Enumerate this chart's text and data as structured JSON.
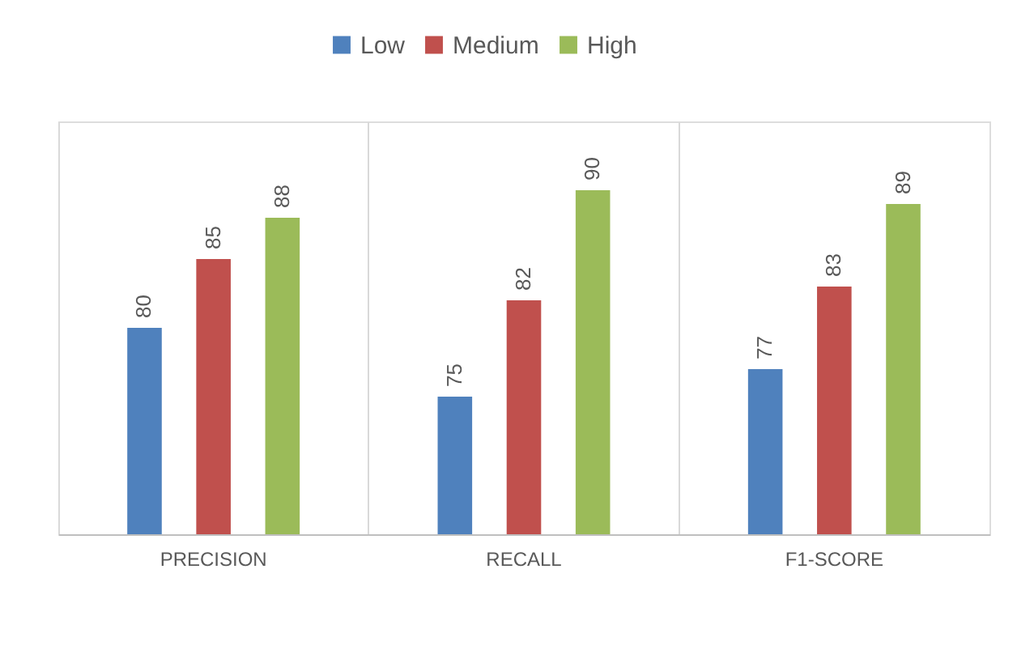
{
  "chart_data": {
    "type": "bar",
    "categories": [
      "PRECISION",
      "RECALL",
      "F1-SCORE"
    ],
    "series": [
      {
        "name": "Low",
        "color": "#4f81bd",
        "values": [
          80,
          75,
          77
        ]
      },
      {
        "name": "Medium",
        "color": "#c0504d",
        "values": [
          85,
          82,
          83
        ]
      },
      {
        "name": "High",
        "color": "#9bbb59",
        "values": [
          88,
          90,
          89
        ]
      }
    ],
    "ylim": [
      65,
      95
    ],
    "data_labels": true,
    "grid": "x",
    "legend": "top",
    "tick_labels": "x"
  }
}
